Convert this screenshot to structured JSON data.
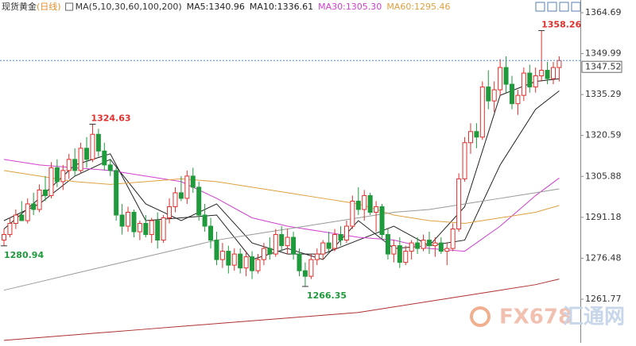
{
  "chart_data": {
    "type": "candlestick",
    "title": "现货黄金",
    "period": "(日线)",
    "ma_label": "MA(5,10,30,60,100,200)",
    "up_color": "#e0302c",
    "down_color": "#1f9a3c",
    "open": [
      1283,
      1285,
      1289,
      1292,
      1290,
      1296,
      1294,
      1301,
      1299,
      1309,
      1304,
      1308,
      1312,
      1308,
      1316,
      1312,
      1321,
      1315,
      1310,
      1308,
      1292,
      1288,
      1293,
      1286,
      1289,
      1285,
      1290,
      1283,
      1291,
      1295,
      1300,
      1298,
      1306,
      1302,
      1292,
      1288,
      1283,
      1276,
      1279,
      1274,
      1278,
      1273,
      1277,
      1272,
      1276,
      1280,
      1278,
      1285,
      1281,
      1284,
      1278,
      1272,
      1270,
      1276,
      1278,
      1282,
      1280,
      1285,
      1283,
      1288,
      1297,
      1294,
      1299,
      1293,
      1295,
      1285,
      1278,
      1281,
      1275,
      1279,
      1282,
      1280,
      1283,
      1281,
      1282,
      1279,
      1280,
      1287,
      1305,
      1318,
      1322,
      1320,
      1338,
      1333,
      1337,
      1345,
      1339,
      1332,
      1335,
      1343,
      1338,
      1342,
      1344,
      1341,
      1345
    ],
    "high": [
      1287,
      1291,
      1294,
      1297,
      1298,
      1300,
      1303,
      1306,
      1311,
      1312,
      1310,
      1314,
      1316,
      1318,
      1320,
      1324.63,
      1323,
      1318,
      1312,
      1309,
      1296,
      1295,
      1294,
      1290,
      1292,
      1291,
      1293,
      1292,
      1298,
      1302,
      1306,
      1308,
      1309,
      1304,
      1296,
      1291,
      1286,
      1282,
      1281,
      1280,
      1280,
      1279,
      1279,
      1278,
      1282,
      1284,
      1287,
      1288,
      1287,
      1286,
      1280,
      1275,
      1278,
      1280,
      1283,
      1286,
      1287,
      1288,
      1290,
      1299,
      1302,
      1301,
      1300,
      1297,
      1296,
      1287,
      1283,
      1284,
      1281,
      1283,
      1284,
      1285,
      1286,
      1284,
      1284,
      1282,
      1289,
      1307,
      1320,
      1325,
      1325,
      1340,
      1344,
      1340,
      1348,
      1349,
      1342,
      1337,
      1345,
      1346,
      1345,
      1358.26,
      1347,
      1347,
      1349
    ],
    "low": [
      1280.94,
      1284,
      1287,
      1290,
      1289,
      1292,
      1293,
      1297,
      1298,
      1302,
      1301,
      1305,
      1306,
      1307,
      1309,
      1311,
      1313,
      1308,
      1306,
      1290,
      1285,
      1286,
      1284,
      1283,
      1284,
      1282,
      1280,
      1282,
      1289,
      1293,
      1297,
      1296,
      1300,
      1290,
      1286,
      1280,
      1274,
      1273,
      1271,
      1272,
      1271,
      1270,
      1269,
      1271,
      1274,
      1276,
      1277,
      1279,
      1278,
      1276,
      1270,
      1266.35,
      1269,
      1274,
      1276,
      1279,
      1279,
      1281,
      1282,
      1287,
      1292,
      1290,
      1292,
      1286,
      1283,
      1276,
      1275,
      1273,
      1274,
      1276,
      1278,
      1279,
      1278,
      1277,
      1278,
      1274,
      1279,
      1286,
      1304,
      1314,
      1316,
      1319,
      1330,
      1329,
      1335,
      1336,
      1330,
      1328,
      1333,
      1336,
      1336,
      1340,
      1339,
      1339,
      1340
    ],
    "close": [
      1285,
      1289,
      1292,
      1290,
      1296,
      1294,
      1301,
      1299,
      1309,
      1304,
      1308,
      1312,
      1308,
      1316,
      1312,
      1321,
      1315,
      1310,
      1308,
      1292,
      1288,
      1293,
      1286,
      1289,
      1285,
      1290,
      1283,
      1291,
      1295,
      1300,
      1298,
      1306,
      1302,
      1292,
      1288,
      1283,
      1276,
      1279,
      1274,
      1278,
      1273,
      1277,
      1272,
      1276,
      1280,
      1278,
      1285,
      1281,
      1284,
      1278,
      1272,
      1270,
      1276,
      1278,
      1282,
      1280,
      1285,
      1283,
      1288,
      1297,
      1294,
      1299,
      1293,
      1295,
      1285,
      1278,
      1281,
      1275,
      1279,
      1282,
      1280,
      1283,
      1281,
      1282,
      1279,
      1280,
      1287,
      1305,
      1318,
      1322,
      1320,
      1338,
      1333,
      1337,
      1345,
      1339,
      1332,
      1335,
      1343,
      1338,
      1342,
      1344,
      1341,
      1345,
      1347.52
    ],
    "series": [
      {
        "name": "MA5:1340.96",
        "color": "#222222",
        "x": [
          0,
          6,
          12,
          18,
          24,
          30,
          36,
          42,
          48,
          54,
          60,
          66,
          72,
          78,
          84,
          90,
          94
        ],
        "values": [
          1287,
          1298,
          1310,
          1314,
          1290,
          1291,
          1292,
          1276,
          1280,
          1276,
          1290,
          1280,
          1281,
          1295,
          1335,
          1340,
          1340.96
        ]
      },
      {
        "name": "MA10:1336.61",
        "color": "#222222",
        "x": [
          0,
          6,
          12,
          18,
          24,
          30,
          36,
          42,
          48,
          54,
          60,
          66,
          72,
          78,
          84,
          90,
          94
        ],
        "values": [
          1290,
          1296,
          1306,
          1312,
          1296,
          1290,
          1296,
          1282,
          1278,
          1278,
          1283,
          1288,
          1281,
          1283,
          1310,
          1330,
          1336.61
        ]
      },
      {
        "name": "MA30:1305.30",
        "color": "#d040d0",
        "x": [
          0,
          6,
          12,
          18,
          24,
          30,
          36,
          42,
          48,
          54,
          60,
          66,
          72,
          78,
          84,
          90,
          94
        ],
        "values": [
          1312,
          1310,
          1309,
          1308,
          1306,
          1304,
          1298,
          1291,
          1288,
          1286,
          1284,
          1283,
          1280,
          1279,
          1288,
          1299,
          1305.3
        ]
      },
      {
        "name": "MA60:1295.46",
        "color": "#e0a040",
        "x": [
          0,
          6,
          12,
          18,
          24,
          30,
          36,
          42,
          48,
          54,
          60,
          66,
          72,
          78,
          84,
          90,
          94
        ],
        "values": [
          1308,
          1306,
          1304,
          1303,
          1304,
          1305,
          1304,
          1302,
          1300,
          1298,
          1296,
          1292,
          1290,
          1289,
          1291,
          1293,
          1295.46
        ]
      },
      {
        "color": "#999999",
        "x": [
          0,
          6,
          12,
          18,
          24,
          30,
          36,
          42,
          48,
          54,
          60,
          66,
          72,
          78,
          84,
          90,
          94
        ],
        "values": [
          1265,
          1268,
          1271,
          1274,
          1277,
          1280,
          1283,
          1285,
          1287,
          1289,
          1291,
          1293,
          1294,
          1296,
          1298,
          1300,
          1301.4
        ]
      },
      {
        "color": "#b03030",
        "x": [
          0,
          6,
          12,
          18,
          24,
          30,
          36,
          42,
          48,
          54,
          60,
          66,
          72,
          78,
          84,
          90,
          94
        ],
        "values": [
          1247,
          1248,
          1249,
          1250,
          1251,
          1252,
          1253,
          1254,
          1255,
          1256,
          1257,
          1259,
          1261,
          1263,
          1265,
          1267,
          1269
        ]
      }
    ],
    "ylim": [
      1246.1,
      1369.25
    ],
    "yticks": [
      {
        "value": 1364.69,
        "label": "1364.69"
      },
      {
        "value": 1349.99,
        "label": "1349.99"
      },
      {
        "value": 1335.29,
        "label": "1335.29"
      },
      {
        "value": 1320.59,
        "label": "1320.59"
      },
      {
        "value": 1305.88,
        "label": "1305.88"
      },
      {
        "value": 1291.18,
        "label": "1291.18"
      },
      {
        "value": 1276.48,
        "label": "1276.48"
      },
      {
        "value": 1261.77,
        "label": "1261.77"
      }
    ],
    "last_price_line": true,
    "watermark": [
      "FX678",
      "汇通网"
    ]
  }
}
